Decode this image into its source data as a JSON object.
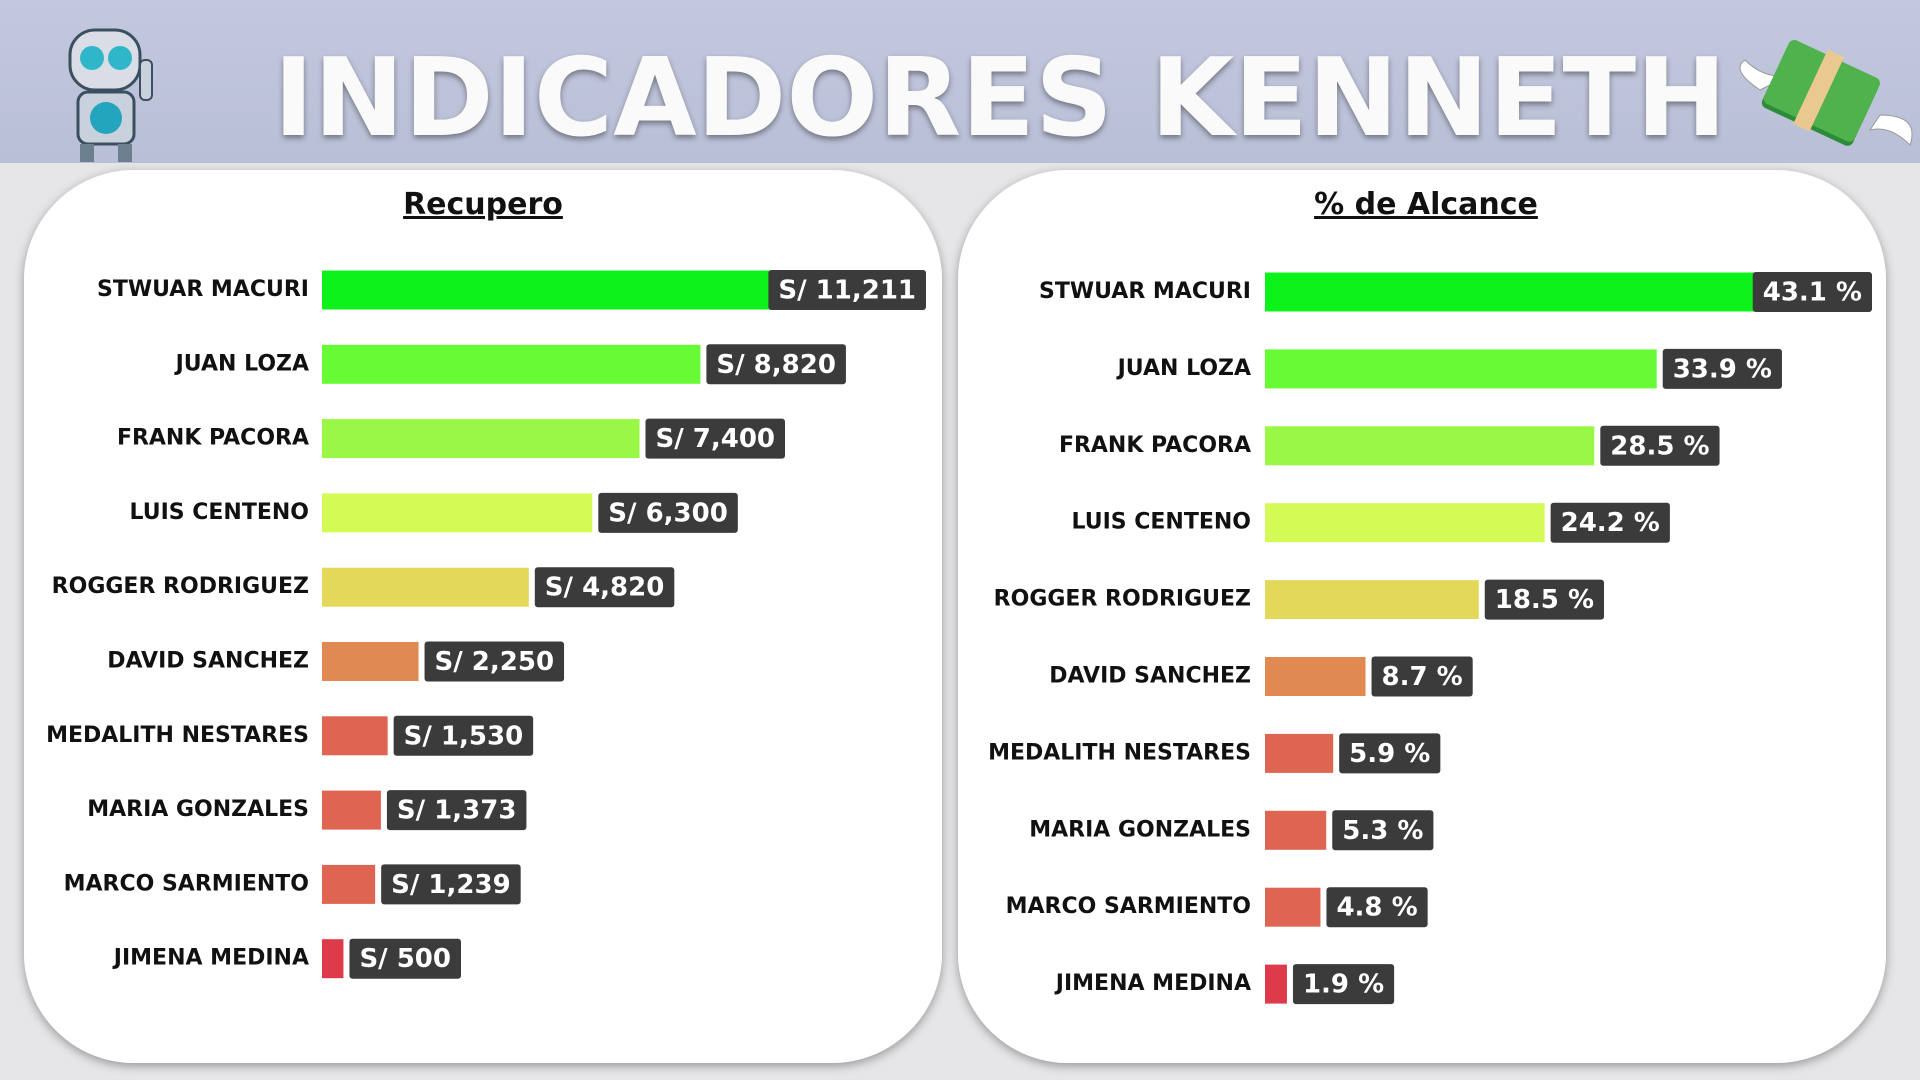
{
  "header": {
    "title": "INDICADORES KENNETH"
  },
  "chart_data": [
    {
      "type": "bar",
      "orientation": "horizontal",
      "title": "Recupero",
      "categories": [
        "STWUAR MACURI",
        "JUAN LOZA",
        "FRANK PACORA",
        "LUIS CENTENO",
        "ROGGER RODRIGUEZ",
        "DAVID SANCHEZ",
        "MEDALITH NESTARES",
        "MARIA GONZALES",
        "MARCO SARMIENTO",
        "JIMENA MEDINA"
      ],
      "values": [
        11211,
        8820,
        7400,
        6300,
        4820,
        2250,
        1530,
        1373,
        1239,
        500
      ],
      "value_labels": [
        "S/ 11,211",
        "S/ 8,820",
        "S/ 7,400",
        "S/ 6,300",
        "S/ 4,820",
        "S/ 2,250",
        "S/ 1,530",
        "S/ 1,373",
        "S/ 1,239",
        "S/ 500"
      ],
      "colors": [
        "#0df21a",
        "#66fb34",
        "#99f745",
        "#d4fa55",
        "#e4d85a",
        "#e08a52",
        "#df6553",
        "#df6553",
        "#df6553",
        "#de3b4a"
      ]
    },
    {
      "type": "bar",
      "orientation": "horizontal",
      "title": "% de Alcance",
      "categories": [
        "STWUAR MACURI",
        "JUAN LOZA",
        "FRANK PACORA",
        "LUIS CENTENO",
        "ROGGER RODRIGUEZ",
        "DAVID SANCHEZ",
        "MEDALITH NESTARES",
        "MARIA GONZALES",
        "MARCO SARMIENTO",
        "JIMENA MEDINA"
      ],
      "values": [
        43.1,
        33.9,
        28.5,
        24.2,
        18.5,
        8.7,
        5.9,
        5.3,
        4.8,
        1.9
      ],
      "value_labels": [
        "43.1 %",
        "33.9 %",
        "28.5 %",
        "24.2 %",
        "18.5 %",
        "8.7 %",
        "5.9 %",
        "5.3 %",
        "4.8 %",
        "1.9 %"
      ],
      "colors": [
        "#0df21a",
        "#66fb34",
        "#99f745",
        "#d4fa55",
        "#e4d85a",
        "#e08a52",
        "#df6553",
        "#df6553",
        "#df6553",
        "#de3b4a"
      ]
    }
  ]
}
